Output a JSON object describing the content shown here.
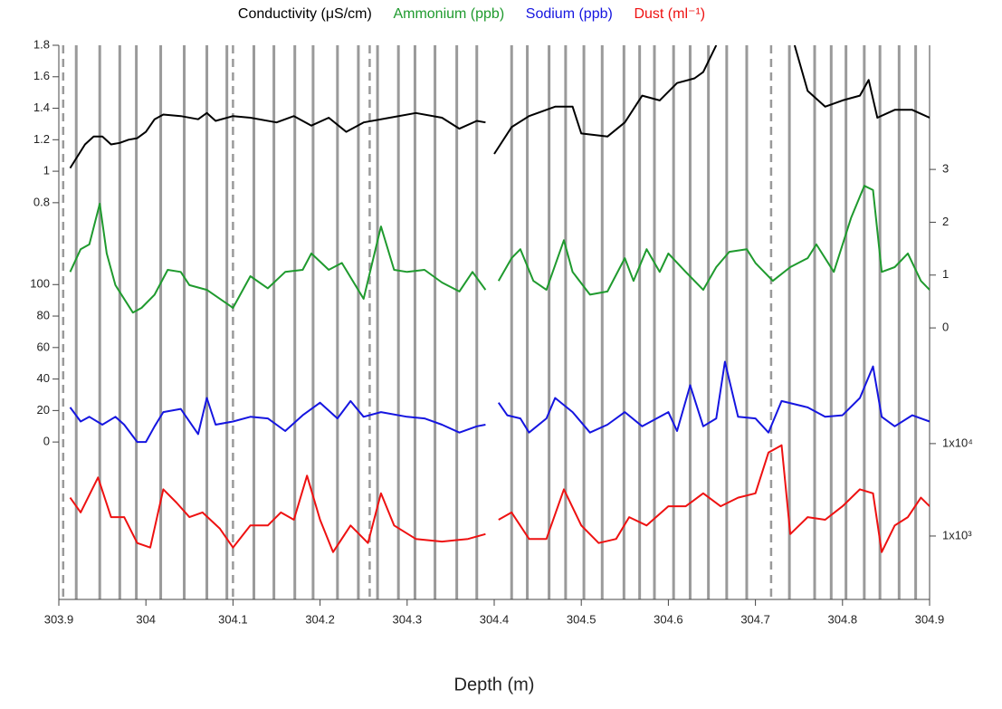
{
  "chart_data": {
    "type": "line",
    "xlabel": "Depth (m)",
    "xlim": [
      303.9,
      304.9
    ],
    "xticks": [
      303.9,
      304,
      304.1,
      304.2,
      304.3,
      304.4,
      304.5,
      304.6,
      304.7,
      304.8,
      304.9
    ],
    "ylim": [
      -1.72,
      1.8
    ],
    "yticks": [
      0.8,
      1,
      1.2,
      1.4,
      1.6,
      1.8
    ],
    "y2lim": [
      -5.14,
      5.35
    ],
    "y2ticks": [
      0,
      1,
      2,
      3
    ],
    "y3lim": [
      -100,
      252
    ],
    "y3ticks": [
      0,
      20,
      40,
      60,
      80,
      100
    ],
    "y4lim": [
      206,
      204000000
    ],
    "y4log": true,
    "y4ticks": [
      {
        "value": 10000,
        "label": "1x10⁴"
      },
      {
        "value": 1000,
        "label": "1x10³"
      }
    ],
    "layer_boundaries": [
      303.92,
      303.947,
      303.97,
      303.989,
      304.017,
      304.044,
      304.07,
      304.093,
      304.124,
      304.147,
      304.171,
      304.192,
      304.22,
      304.244,
      304.266,
      304.29,
      304.309,
      304.332,
      304.357,
      304.38,
      304.42,
      304.438,
      304.463,
      304.482,
      304.503,
      304.524,
      304.549,
      304.567,
      304.584,
      304.606,
      304.625,
      304.646,
      304.667,
      304.69,
      304.739,
      304.768,
      304.787,
      304.804,
      304.825,
      304.843,
      304.865,
      304.884
    ],
    "dashed_boundaries": [
      303.905,
      304.1,
      304.257,
      304.718
    ],
    "series": [
      {
        "name": "Conductivity (μS/cm)",
        "color": "#000000",
        "axis": "y",
        "x": [
          303.913,
          303.93,
          303.94,
          303.95,
          303.96,
          303.97,
          303.98,
          303.99,
          304.0,
          304.01,
          304.02,
          304.04,
          304.06,
          304.07,
          304.08,
          304.1,
          304.12,
          304.15,
          304.17,
          304.19,
          304.21,
          304.23,
          304.25,
          304.28,
          304.31,
          304.34,
          304.36,
          304.38,
          304.39,
          304.395,
          304.4,
          304.42,
          304.44,
          304.47,
          304.49,
          304.5,
          304.53,
          304.55,
          304.57,
          304.59,
          304.61,
          304.63,
          304.64,
          304.655,
          304.7,
          304.745,
          304.76,
          304.78,
          304.8,
          304.82,
          304.83,
          304.84,
          304.86,
          304.88,
          304.9
        ],
        "values": [
          1.02,
          1.17,
          1.22,
          1.22,
          1.17,
          1.18,
          1.2,
          1.21,
          1.25,
          1.33,
          1.36,
          1.35,
          1.33,
          1.37,
          1.32,
          1.35,
          1.34,
          1.31,
          1.35,
          1.29,
          1.34,
          1.25,
          1.31,
          1.34,
          1.37,
          1.34,
          1.27,
          1.32,
          1.31,
          null,
          1.11,
          1.28,
          1.35,
          1.41,
          1.41,
          1.24,
          1.22,
          1.31,
          1.48,
          1.45,
          1.56,
          1.59,
          1.63,
          1.8,
          null,
          1.8,
          1.51,
          1.41,
          1.45,
          1.48,
          1.58,
          1.34,
          1.39,
          1.39,
          1.34
        ]
      },
      {
        "name": "Ammonium (ppb)",
        "color": "#1f9a2e",
        "axis": "y2",
        "x": [
          303.913,
          303.925,
          303.935,
          303.947,
          303.955,
          303.965,
          303.985,
          303.995,
          304.01,
          304.025,
          304.04,
          304.05,
          304.07,
          304.1,
          304.12,
          304.14,
          304.16,
          304.18,
          304.19,
          304.21,
          304.225,
          304.25,
          304.27,
          304.285,
          304.3,
          304.32,
          304.34,
          304.36,
          304.375,
          304.39,
          304.395,
          304.405,
          304.42,
          304.43,
          304.445,
          304.46,
          304.48,
          304.49,
          304.51,
          304.53,
          304.55,
          304.56,
          304.575,
          304.59,
          304.6,
          304.62,
          304.64,
          304.655,
          304.67,
          304.69,
          304.7,
          304.72,
          304.74,
          304.76,
          304.77,
          304.79,
          304.81,
          304.825,
          304.835,
          304.845,
          304.86,
          304.875,
          304.89,
          304.9
        ],
        "values": [
          1.06,
          1.49,
          1.58,
          2.35,
          1.41,
          0.81,
          0.29,
          0.38,
          0.63,
          1.1,
          1.06,
          0.81,
          0.72,
          0.38,
          0.98,
          0.75,
          1.06,
          1.1,
          1.41,
          1.1,
          1.23,
          0.55,
          1.92,
          1.1,
          1.06,
          1.1,
          0.86,
          0.69,
          1.06,
          0.72,
          null,
          0.89,
          1.32,
          1.49,
          0.89,
          0.72,
          1.66,
          1.06,
          0.63,
          0.69,
          1.32,
          0.89,
          1.49,
          1.06,
          1.41,
          1.06,
          0.72,
          1.15,
          1.44,
          1.49,
          1.23,
          0.89,
          1.15,
          1.32,
          1.58,
          1.06,
          2.09,
          2.69,
          2.61,
          1.06,
          1.15,
          1.41,
          0.89,
          0.72
        ]
      },
      {
        "name": "Sodium (ppb)",
        "color": "#1515e0",
        "axis": "y3",
        "x": [
          303.913,
          303.925,
          303.935,
          303.95,
          303.965,
          303.975,
          303.99,
          304.0,
          304.01,
          304.02,
          304.04,
          304.06,
          304.07,
          304.08,
          304.1,
          304.12,
          304.14,
          304.16,
          304.18,
          304.2,
          304.22,
          304.235,
          304.25,
          304.27,
          304.3,
          304.32,
          304.34,
          304.36,
          304.38,
          304.39,
          304.395,
          304.405,
          304.415,
          304.43,
          304.44,
          304.46,
          304.47,
          304.49,
          304.51,
          304.53,
          304.55,
          304.57,
          304.6,
          304.61,
          304.625,
          304.64,
          304.655,
          304.665,
          304.68,
          304.7,
          304.715,
          304.73,
          304.76,
          304.78,
          304.8,
          304.82,
          304.835,
          304.845,
          304.86,
          304.88,
          304.9
        ],
        "values": [
          22,
          13,
          16,
          11,
          16,
          11,
          0,
          0,
          10,
          19,
          21,
          5,
          28,
          11,
          13,
          16,
          15,
          7,
          17,
          25,
          15,
          26,
          16,
          19,
          16,
          15,
          11,
          6,
          10,
          11,
          null,
          25,
          17,
          15,
          6,
          15,
          28,
          19,
          6,
          11,
          19,
          10,
          19,
          7,
          36,
          10,
          15,
          51,
          16,
          15,
          6,
          26,
          22,
          16,
          17,
          28,
          48,
          16,
          10,
          17,
          13
        ]
      },
      {
        "name": "Dust (ml⁻¹)",
        "color": "#ee1111",
        "axis": "y4",
        "x": [
          303.913,
          303.925,
          303.945,
          303.96,
          303.975,
          303.99,
          304.005,
          304.02,
          304.035,
          304.05,
          304.065,
          304.085,
          304.1,
          304.12,
          304.14,
          304.155,
          304.17,
          304.185,
          304.2,
          304.215,
          304.235,
          304.255,
          304.27,
          304.285,
          304.31,
          304.34,
          304.37,
          304.39,
          304.395,
          304.405,
          304.42,
          304.44,
          304.46,
          304.48,
          304.5,
          304.52,
          304.54,
          304.555,
          304.575,
          304.6,
          304.62,
          304.64,
          304.66,
          304.68,
          304.7,
          304.715,
          304.73,
          304.74,
          304.76,
          304.78,
          304.8,
          304.82,
          304.835,
          304.845,
          304.86,
          304.875,
          304.89,
          304.9
        ],
        "values": [
          2600,
          1800,
          4300,
          1600,
          1600,
          840,
          750,
          3200,
          2300,
          1600,
          1800,
          1200,
          750,
          1300,
          1300,
          1800,
          1500,
          4500,
          1500,
          670,
          1300,
          840,
          2900,
          1300,
          930,
          870,
          930,
          1050,
          null,
          1500,
          1800,
          930,
          930,
          3200,
          1300,
          840,
          930,
          1600,
          1300,
          2100,
          2100,
          2900,
          2100,
          2600,
          2900,
          8000,
          9600,
          1050,
          1600,
          1500,
          2100,
          3200,
          2900,
          670,
          1300,
          1600,
          2600,
          2100
        ]
      }
    ]
  }
}
